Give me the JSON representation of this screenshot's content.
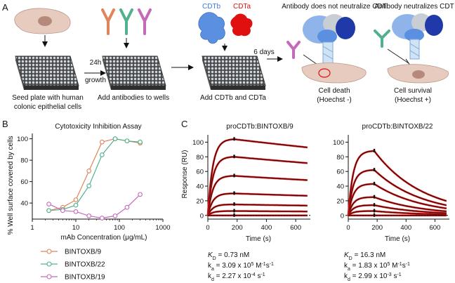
{
  "panel_a": {
    "letter": "A",
    "step1_caption": [
      "Seed plate with human",
      "colonic epithelial cells"
    ],
    "arrow1_label": [
      "24h",
      "growth"
    ],
    "step2_caption": "Add antibodies to wells",
    "cdtb_label": "CDTb",
    "cdta_label": "CDTa",
    "step3_caption": "Add CDTb and CDTa",
    "arrow3_label": "6 days",
    "outcome_left_title": "Antibody does not neutralize CDT",
    "outcome_right_title": "Antibody neutralizes CDT",
    "outcome_left_caption": [
      "Cell death",
      "(Hoechst -)"
    ],
    "outcome_right_caption": [
      "Cell survival",
      "(Hoechst +)"
    ],
    "colors": {
      "cdtb": "#5b8fe0",
      "cdta": "#e01010",
      "cell": "#e8cbbf",
      "antibody_orange": "#e0845a",
      "antibody_green": "#4fb28c",
      "antibody_pink": "#c36ab8"
    }
  },
  "panel_b": {
    "letter": "B",
    "chart_data": {
      "type": "line",
      "title": "Cytotoxicity Inhibition Assay",
      "xlabel": "mAb Concentration (μg/mL)",
      "ylabel": "% Well surface covered by cells",
      "xscale": "log",
      "xlim": [
        1,
        1000
      ],
      "ylim": [
        25,
        105
      ],
      "xticks": [
        1,
        10,
        100,
        1000
      ],
      "yticks": [
        40,
        60,
        80,
        100
      ],
      "legend_position": "bottom",
      "series": [
        {
          "name": "BINTOXB/9",
          "color": "#e0845a",
          "x": [
            2.4,
            5,
            10,
            20,
            40,
            80,
            150,
            300
          ],
          "y": [
            33,
            36,
            43,
            70,
            97,
            100,
            98,
            96
          ]
        },
        {
          "name": "BINTOXB/22",
          "color": "#4fb28c",
          "x": [
            2.4,
            5,
            10,
            20,
            40,
            80,
            150,
            300
          ],
          "y": [
            33,
            34,
            38,
            56,
            85,
            100,
            98,
            97
          ]
        },
        {
          "name": "BINTOXB/19",
          "color": "#c36ab8",
          "x": [
            2.4,
            5,
            10,
            20,
            40,
            80,
            150,
            300
          ],
          "y": [
            39,
            33,
            32,
            28,
            26,
            28,
            36,
            48
          ]
        }
      ]
    }
  },
  "panel_c": {
    "letter": "C",
    "chart_data": [
      {
        "type": "line",
        "title": "proCDTb:BINTOXB/9",
        "xlabel": "Time (s)",
        "ylabel": "Response (RU)",
        "xlim": [
          0,
          700
        ],
        "ylim": [
          -5,
          110
        ],
        "xticks": [
          0,
          200,
          400,
          600
        ],
        "yticks": [
          0,
          20,
          40,
          60,
          80,
          100
        ],
        "model": {
          "association_end_s": 180,
          "kd_per_s": 0.000227,
          "kobs_per_s": 0.03
        },
        "peaks": [
          104,
          80,
          54,
          30,
          15,
          6,
          0
        ],
        "kinetics": {
          "KD": "0.73 nM",
          "ka": "3.09 x 10^5 M^-1s^-1",
          "kd": "2.27 x 10^-4 s^-1"
        }
      },
      {
        "type": "line",
        "title": "proCDTb:BINTOXB/22",
        "xlabel": "Time (s)",
        "ylabel": "",
        "xlim": [
          0,
          700
        ],
        "ylim": [
          -5,
          110
        ],
        "xticks": [
          0,
          200,
          400,
          600
        ],
        "yticks": [
          0,
          20,
          40,
          60,
          80,
          100
        ],
        "model": {
          "association_end_s": 180,
          "kd_per_s": 0.00299,
          "kobs_per_s": 0.03
        },
        "peaks": [
          88,
          62,
          43,
          25,
          14,
          6,
          0
        ],
        "kinetics": {
          "KD": "16.3 nM",
          "ka": "1.83 x 10^5 M^-1s^-1",
          "kd": "2.99 x 10^-3 s^-1"
        }
      }
    ],
    "kin_left": {
      "kd_prefix": "K",
      "kd_sub": "D",
      "kd_val": " = 0.73 nM",
      "ka_prefix": "k",
      "ka_sub": "a",
      "ka_val": " = 3.09 x 10",
      "ka_exp": "5",
      "ka_unit": " M",
      "ka_unit_exp": "-1",
      "ka_unit2": "s",
      "ka_unit2_exp": "-1",
      "koff_prefix": "k",
      "koff_sub": "d",
      "koff_val": " = 2.27 x 10",
      "koff_exp": "-4",
      "koff_unit": " s",
      "koff_unit_exp": "-1"
    },
    "kin_right": {
      "kd_prefix": "K",
      "kd_sub": "D",
      "kd_val": " = 16.3 nM",
      "ka_prefix": "k",
      "ka_sub": "a",
      "ka_val": " = 1.83 x 10",
      "ka_exp": "5",
      "ka_unit": " M",
      "ka_unit_exp": "-1",
      "ka_unit2": "s",
      "ka_unit2_exp": "-1",
      "koff_prefix": "k",
      "koff_sub": "d",
      "koff_val": " = 2.99 x 10",
      "koff_exp": "-3",
      "koff_unit": " s",
      "koff_unit_exp": "-1"
    }
  }
}
